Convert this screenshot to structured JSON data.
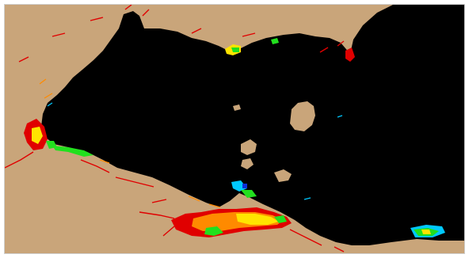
{
  "map": {
    "colors": {
      "land": "#c9a57a",
      "water": "#000000",
      "frame": "#cfcfcf",
      "concentration_low": "#0b2fd8",
      "concentration_mid_low": "#00c8ff",
      "concentration_mid": "#22e01e",
      "concentration_mid_high": "#ffe400",
      "concentration_high": "#ff8a00",
      "concentration_max": "#e00000"
    }
  }
}
